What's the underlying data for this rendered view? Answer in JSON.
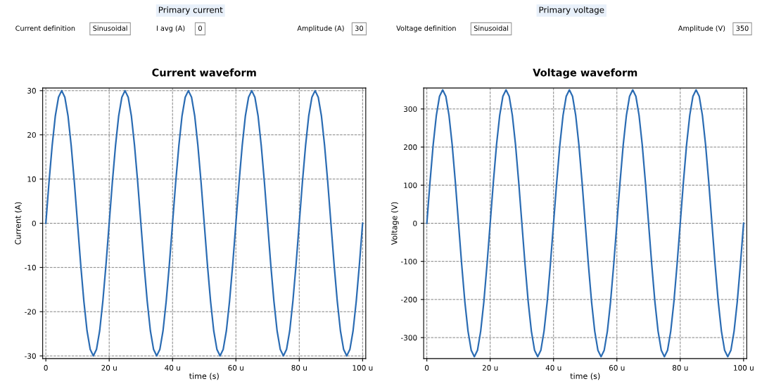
{
  "chart_data": [
    {
      "type": "line",
      "title": "Current waveform",
      "xlabel": "time (s)",
      "ylabel": "Current (A)",
      "annotations": [
        "Primary current",
        "Current definition",
        "Sinusoidal",
        "I avg (A)",
        "0",
        "Amplitude (A)",
        "30"
      ],
      "x": [
        0,
        1,
        2,
        3,
        4,
        5,
        6,
        7,
        8,
        9,
        10,
        11,
        12,
        13,
        14,
        15,
        16,
        17,
        18,
        19,
        20,
        21,
        22,
        23,
        24,
        25,
        26,
        27,
        28,
        29,
        30,
        31,
        32,
        33,
        34,
        35,
        36,
        37,
        38,
        39,
        40,
        41,
        42,
        43,
        44,
        45,
        46,
        47,
        48,
        49,
        50,
        51,
        52,
        53,
        54,
        55,
        56,
        57,
        58,
        59,
        60,
        61,
        62,
        63,
        64,
        65,
        66,
        67,
        68,
        69,
        70,
        71,
        72,
        73,
        74,
        75,
        76,
        77,
        78,
        79,
        80,
        81,
        82,
        83,
        84,
        85,
        86,
        87,
        88,
        89,
        90,
        91,
        92,
        93,
        94,
        95,
        96,
        97,
        98,
        99,
        100
      ],
      "series": [
        {
          "color": "#2b6cb3",
          "values": [
            0,
            9.3,
            17.6,
            24.3,
            28.5,
            30,
            28.5,
            24.3,
            17.6,
            9.3,
            0,
            -9.3,
            -17.6,
            -24.3,
            -28.5,
            -30,
            -28.5,
            -24.3,
            -17.6,
            -9.3,
            0,
            9.3,
            17.6,
            24.3,
            28.5,
            30,
            28.5,
            24.3,
            17.6,
            9.3,
            0,
            -9.3,
            -17.6,
            -24.3,
            -28.5,
            -30,
            -28.5,
            -24.3,
            -17.6,
            -9.3,
            0,
            9.3,
            17.6,
            24.3,
            28.5,
            30,
            28.5,
            24.3,
            17.6,
            9.3,
            0,
            -9.3,
            -17.6,
            -24.3,
            -28.5,
            -30,
            -28.5,
            -24.3,
            -17.6,
            -9.3,
            0,
            9.3,
            17.6,
            24.3,
            28.5,
            30,
            28.5,
            24.3,
            17.6,
            9.3,
            0,
            -9.3,
            -17.6,
            -24.3,
            -28.5,
            -30,
            -28.5,
            -24.3,
            -17.6,
            -9.3,
            0,
            9.3,
            17.6,
            24.3,
            28.5,
            30,
            28.5,
            24.3,
            17.6,
            9.3,
            0,
            -9.3,
            -17.6,
            -24.3,
            -28.5,
            -30,
            -28.5,
            -24.3,
            -17.6,
            -9.3,
            0
          ]
        }
      ],
      "xlim": [
        -1,
        101
      ],
      "xticks": [
        0,
        {
          "value": 20,
          "label": "20 u"
        },
        {
          "value": 40,
          "label": "40 u"
        },
        {
          "value": 60,
          "label": "60 u"
        },
        {
          "value": 80,
          "label": "80 u"
        },
        {
          "value": 100,
          "label": "100 u"
        }
      ],
      "ylim": [
        -30.6,
        30.6
      ],
      "yticks": [
        -30,
        -20,
        -10,
        0,
        10,
        20,
        30
      ],
      "grid": true,
      "line_style": "solid"
    },
    {
      "type": "line",
      "title": "Voltage waveform",
      "xlabel": "time (s)",
      "ylabel": "Voltage (V)",
      "annotations": [
        "Primary voltage",
        "Voltage definition",
        "Sinusoidal",
        "Amplitude (V)",
        "350"
      ],
      "x": [
        0,
        1,
        2,
        3,
        4,
        5,
        6,
        7,
        8,
        9,
        10,
        11,
        12,
        13,
        14,
        15,
        16,
        17,
        18,
        19,
        20,
        21,
        22,
        23,
        24,
        25,
        26,
        27,
        28,
        29,
        30,
        31,
        32,
        33,
        34,
        35,
        36,
        37,
        38,
        39,
        40,
        41,
        42,
        43,
        44,
        45,
        46,
        47,
        48,
        49,
        50,
        51,
        52,
        53,
        54,
        55,
        56,
        57,
        58,
        59,
        60,
        61,
        62,
        63,
        64,
        65,
        66,
        67,
        68,
        69,
        70,
        71,
        72,
        73,
        74,
        75,
        76,
        77,
        78,
        79,
        80,
        81,
        82,
        83,
        84,
        85,
        86,
        87,
        88,
        89,
        90,
        91,
        92,
        93,
        94,
        95,
        96,
        97,
        98,
        99,
        100
      ],
      "series": [
        {
          "color": "#2b6cb3",
          "values": [
            0,
            108,
            206,
            283,
            333,
            350,
            333,
            283,
            206,
            108,
            0,
            -108,
            -206,
            -283,
            -333,
            -350,
            -333,
            -283,
            -206,
            -108,
            0,
            108,
            206,
            283,
            333,
            350,
            333,
            283,
            206,
            108,
            0,
            -108,
            -206,
            -283,
            -333,
            -350,
            -333,
            -283,
            -206,
            -108,
            0,
            108,
            206,
            283,
            333,
            350,
            333,
            283,
            206,
            108,
            0,
            -108,
            -206,
            -283,
            -333,
            -350,
            -333,
            -283,
            -206,
            -108,
            0,
            108,
            206,
            283,
            333,
            350,
            333,
            283,
            206,
            108,
            0,
            -108,
            -206,
            -283,
            -333,
            -350,
            -333,
            -283,
            -206,
            -108,
            0,
            108,
            206,
            283,
            333,
            350,
            333,
            283,
            206,
            108,
            0,
            -108,
            -206,
            -283,
            -333,
            -350,
            -333,
            -283,
            -206,
            -108,
            0
          ]
        }
      ],
      "xlim": [
        -1,
        101
      ],
      "xticks": [
        0,
        {
          "value": 20,
          "label": "20 u"
        },
        {
          "value": 40,
          "label": "40 u"
        },
        {
          "value": 60,
          "label": "60 u"
        },
        {
          "value": 80,
          "label": "80 u"
        },
        {
          "value": 100,
          "label": "100 u"
        }
      ],
      "ylim": [
        -355,
        355
      ],
      "yticks": [
        -300,
        -200,
        -100,
        0,
        100,
        200,
        300
      ],
      "grid": true,
      "line_style": "solid"
    }
  ]
}
